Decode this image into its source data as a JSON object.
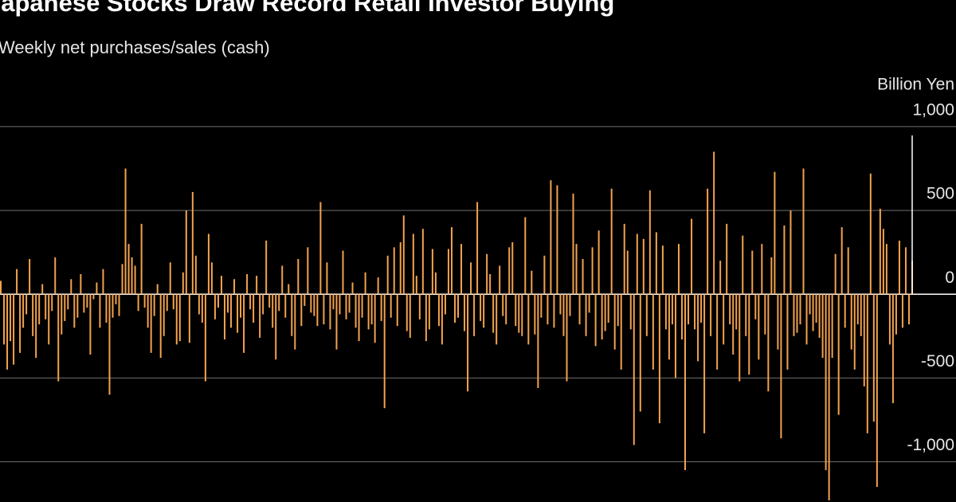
{
  "chart_data": {
    "type": "bar",
    "title": "Japanese Stocks Draw Record Retail Investor Buying",
    "subtitle": "Weekly net purchases/sales (cash)",
    "y_axis_label": "Billion Yen",
    "color": "#f2a24e",
    "grid": true,
    "ylim": [
      -1240,
      1090
    ],
    "yticks": [
      {
        "value": -1000,
        "label": "-1,000"
      },
      -500,
      0,
      500,
      {
        "value": 1000,
        "label": "1,000"
      }
    ],
    "values": [
      80,
      -300,
      -450,
      -280,
      -420,
      150,
      -350,
      -200,
      -120,
      210,
      -250,
      -380,
      -180,
      60,
      -150,
      -300,
      -100,
      220,
      -520,
      -240,
      -160,
      -90,
      90,
      -200,
      -140,
      120,
      -110,
      -80,
      -360,
      -30,
      70,
      -200,
      150,
      -170,
      -600,
      -140,
      -60,
      -130,
      180,
      750,
      300,
      220,
      170,
      -100,
      420,
      -80,
      -200,
      -350,
      -130,
      60,
      -380,
      -250,
      -100,
      190,
      -90,
      -300,
      -280,
      130,
      500,
      -290,
      610,
      230,
      -120,
      -170,
      -520,
      360,
      190,
      -150,
      -80,
      110,
      -270,
      -110,
      -200,
      90,
      -230,
      -140,
      -350,
      120,
      -90,
      -170,
      110,
      -260,
      -120,
      320,
      -80,
      -200,
      -390,
      -100,
      170,
      -140,
      60,
      -250,
      -330,
      210,
      -190,
      -70,
      280,
      -110,
      -130,
      -190,
      550,
      -180,
      190,
      -210,
      -90,
      -330,
      -120,
      260,
      -150,
      -110,
      70,
      -200,
      -280,
      -140,
      130,
      -210,
      -180,
      -290,
      100,
      -160,
      -680,
      230,
      -140,
      280,
      -190,
      310,
      470,
      -220,
      -260,
      360,
      110,
      -150,
      390,
      -280,
      -210,
      270,
      130,
      -190,
      -300,
      -120,
      270,
      400,
      -170,
      -140,
      300,
      -220,
      -580,
      190,
      -250,
      550,
      -160,
      -200,
      240,
      120,
      -230,
      -300,
      170,
      -130,
      -180,
      280,
      310,
      -190,
      -230,
      -250,
      460,
      -300,
      140,
      -240,
      -560,
      -140,
      230,
      -180,
      680,
      -200,
      650,
      -120,
      -250,
      -520,
      -130,
      600,
      300,
      -180,
      210,
      -250,
      -110,
      280,
      -310,
      380,
      -270,
      -220,
      -170,
      630,
      -330,
      -190,
      -450,
      420,
      260,
      -210,
      -900,
      360,
      -700,
      330,
      -250,
      620,
      -450,
      370,
      -770,
      290,
      -210,
      -390,
      -180,
      -500,
      300,
      -270,
      -1050,
      -180,
      450,
      -210,
      -400,
      -170,
      -830,
      630,
      -250,
      850,
      -450,
      200,
      -300,
      420,
      -180,
      -360,
      -210,
      -520,
      350,
      -250,
      -480,
      260,
      -150,
      -390,
      300,
      -240,
      -580,
      220,
      730,
      -330,
      -860,
      410,
      -450,
      500,
      -250,
      -230,
      -180,
      750,
      -300,
      -120,
      -220,
      -170,
      -260,
      -380,
      -1050,
      -1230,
      -380,
      240,
      -720,
      400,
      -200,
      280,
      -330,
      -450,
      -180,
      -250,
      -550,
      -830,
      720,
      -760,
      -1150,
      510,
      390,
      300,
      -300,
      -650,
      -240,
      320,
      -200,
      280,
      -180,
      200
    ]
  }
}
